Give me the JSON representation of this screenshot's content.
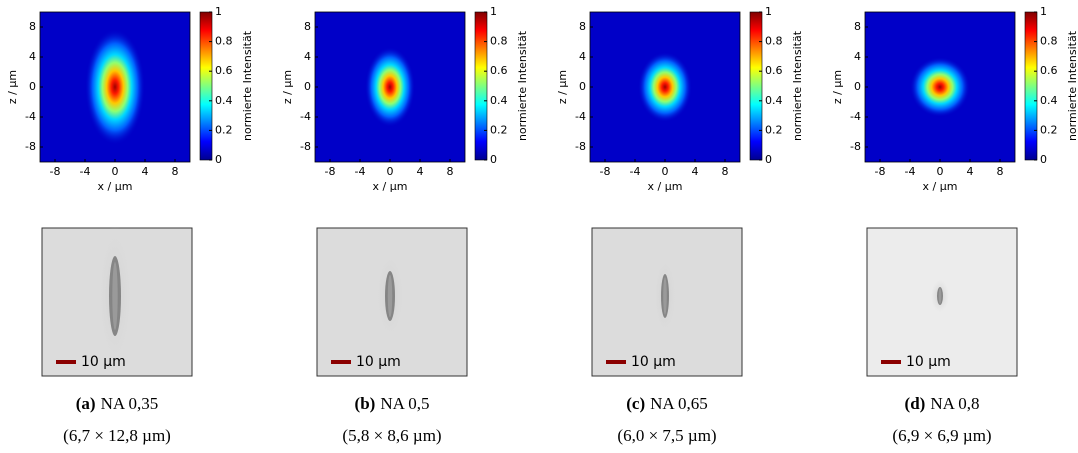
{
  "panels": [
    {
      "label": "(a)",
      "title": "NA 0,35",
      "size": "(6,7 × 12,8 µm)",
      "scale_bar": "10 µm",
      "plot": {
        "xlim": [
          -10,
          10
        ],
        "ylim": [
          -10,
          10
        ],
        "xticks": [
          -8,
          -4,
          0,
          4,
          8
        ],
        "yticks": [
          8,
          4,
          0,
          -4,
          -8
        ],
        "xlabel": "x / µm",
        "ylabel": "z / µm",
        "colorbar": {
          "label": "normierte Intensität",
          "lim": [
            0,
            1
          ],
          "ticks": [
            0,
            0.2,
            0.4,
            0.6,
            0.8,
            1
          ]
        }
      }
    },
    {
      "label": "(b)",
      "title": "NA 0,5",
      "size": "(5,8 × 8,6 µm)",
      "scale_bar": "10 µm",
      "plot": {
        "xlim": [
          -10,
          10
        ],
        "ylim": [
          -10,
          10
        ],
        "xticks": [
          -8,
          -4,
          0,
          4,
          8
        ],
        "yticks": [
          8,
          4,
          0,
          -4,
          -8
        ],
        "xlabel": "x / µm",
        "ylabel": "z / µm",
        "colorbar": {
          "label": "normierte Intensität",
          "lim": [
            0,
            1
          ],
          "ticks": [
            0,
            0.2,
            0.4,
            0.6,
            0.8,
            1
          ]
        }
      }
    },
    {
      "label": "(c)",
      "title": "NA 0,65",
      "size": "(6,0 × 7,5 µm)",
      "scale_bar": "10 µm",
      "plot": {
        "xlim": [
          -10,
          10
        ],
        "ylim": [
          -10,
          10
        ],
        "xticks": [
          -8,
          -4,
          0,
          4,
          8
        ],
        "yticks": [
          8,
          4,
          0,
          -4,
          -8
        ],
        "xlabel": "x / µm",
        "ylabel": "z / µm",
        "colorbar": {
          "label": "normierte Intensität",
          "lim": [
            0,
            1
          ],
          "ticks": [
            0,
            0.2,
            0.4,
            0.6,
            0.8,
            1
          ]
        }
      }
    },
    {
      "label": "(d)",
      "title": "NA 0,8",
      "size": "(6,9 × 6,9 µm)",
      "scale_bar": "10 µm",
      "plot": {
        "xlim": [
          -10,
          10
        ],
        "ylim": [
          -10,
          10
        ],
        "xticks": [
          -8,
          -4,
          0,
          4,
          8
        ],
        "yticks": [
          8,
          4,
          0,
          -4,
          -8
        ],
        "xlabel": "x / µm",
        "ylabel": "z / µm",
        "colorbar": {
          "label": "normierte Intensität",
          "lim": [
            0,
            1
          ],
          "ticks": [
            0,
            0.2,
            0.4,
            0.6,
            0.8,
            1
          ]
        }
      }
    }
  ]
}
